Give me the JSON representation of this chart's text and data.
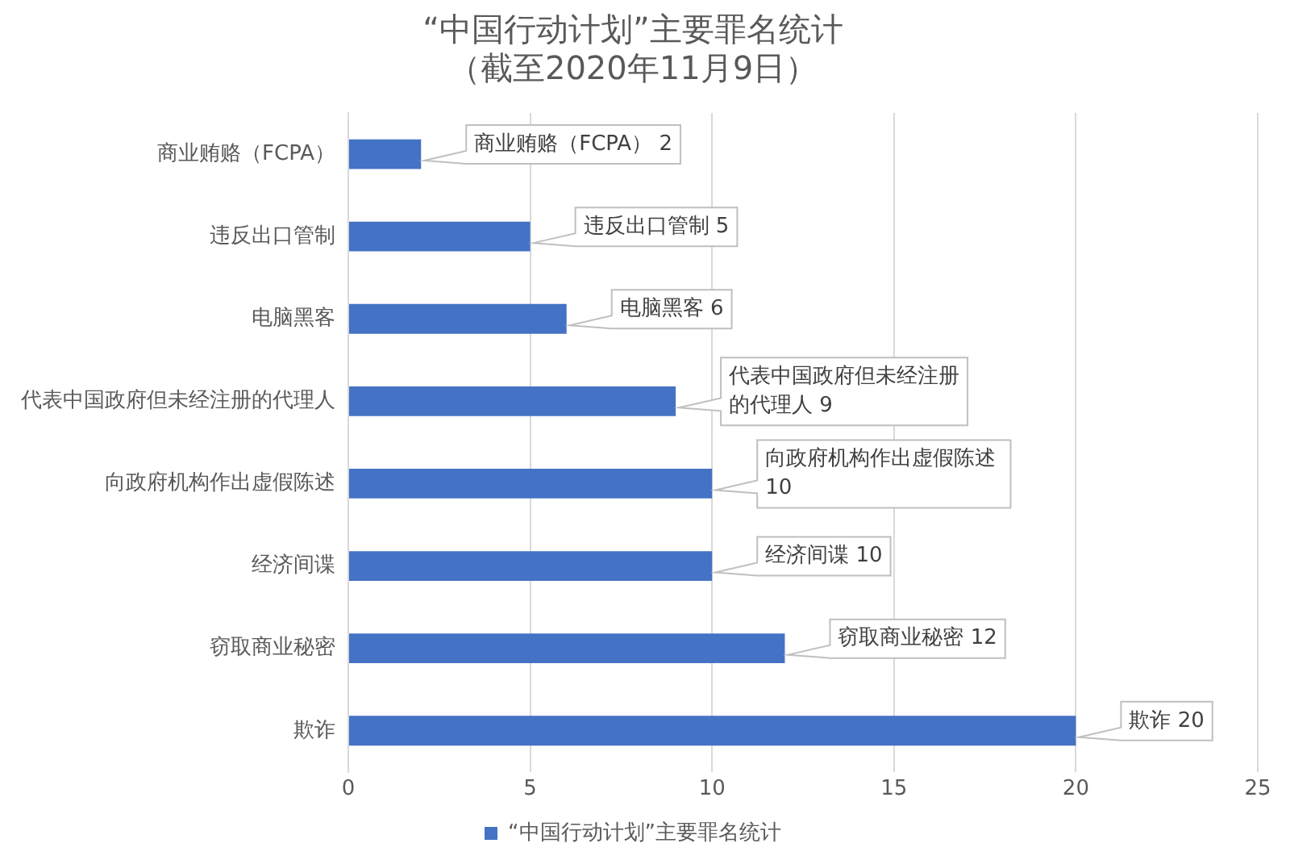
{
  "chart_data": {
    "type": "bar",
    "orientation": "horizontal",
    "title": "“中国行动计划”主要罪名统计（截至2020年11月9日）",
    "categories": [
      "商业贿赂（FCPA）",
      "违反出口管制",
      "电脑黑客",
      "代表中国政府但未经注册的代理人",
      "向政府机构作出虚假陈述",
      "经济间谍",
      "窃取商业秘密",
      "欺诈"
    ],
    "series": [
      {
        "name": "“中国行动计划”主要罪名统计",
        "color": "#4472c4",
        "values": [
          2,
          5,
          6,
          9,
          10,
          10,
          12,
          20
        ],
        "value_labels": [
          "商业贿赂（FCPA） 2",
          "违反出口管制 5",
          "电脑黑客 6",
          "代表中国政府但未经注册的代理人 9",
          "向政府机构作出虚假陈述 10",
          "经济间谍 10",
          "窃取商业秘密 12",
          "欺诈 20"
        ]
      }
    ],
    "xlim": [
      0,
      25
    ],
    "xticks": [
      0,
      5,
      10,
      15,
      20,
      25
    ],
    "grid": "x",
    "legend": "bottom"
  }
}
